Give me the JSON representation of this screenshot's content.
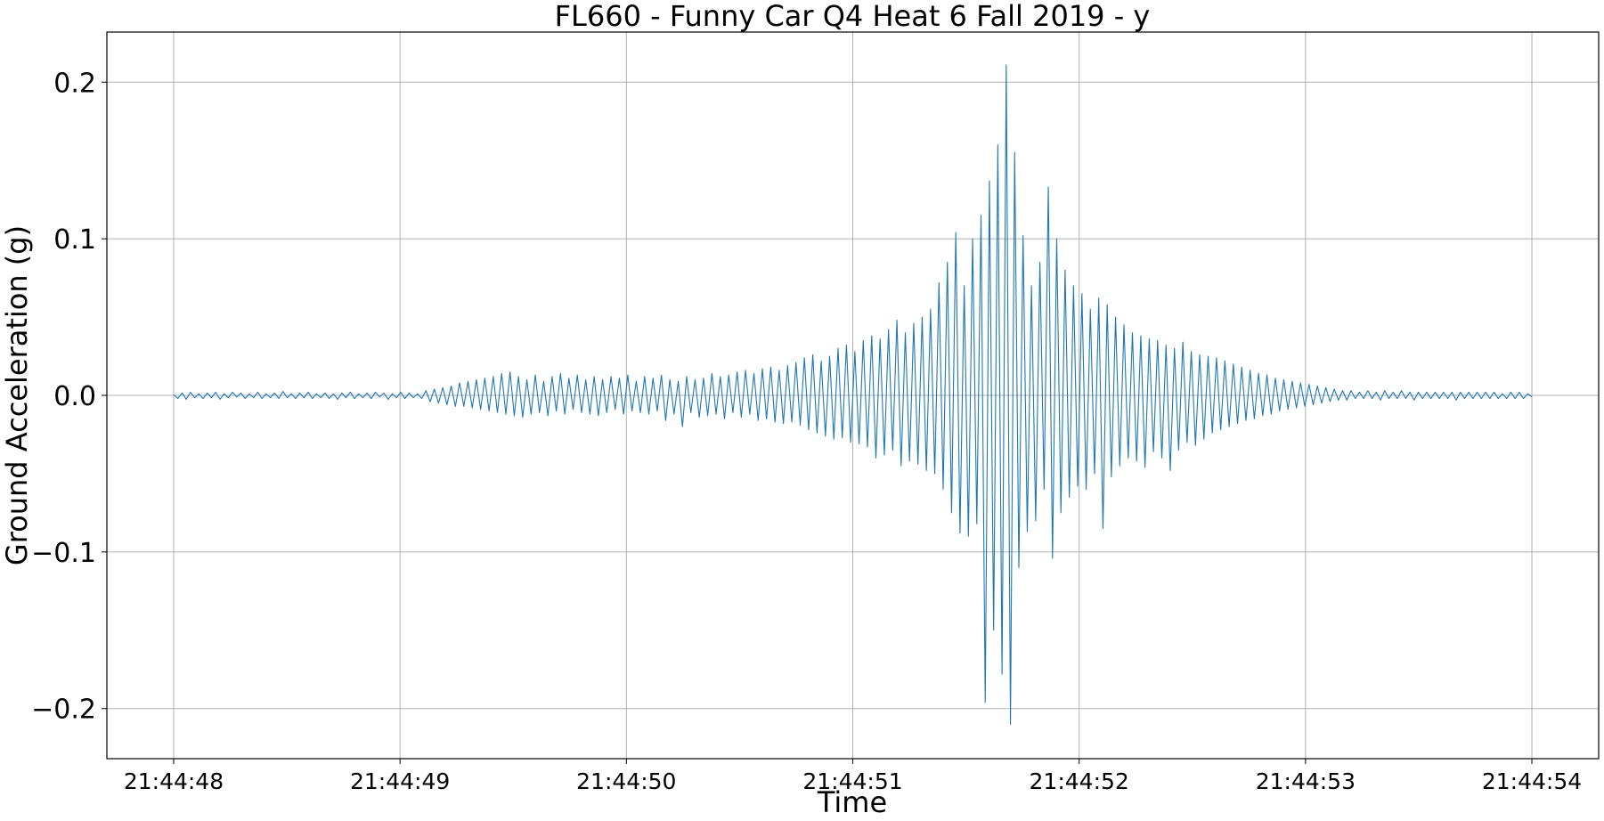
{
  "chart_data": {
    "type": "line",
    "title": "FL660 - Funny Car Q4 Heat 6 Fall 2019 - y",
    "xlabel": "Time",
    "ylabel": "Ground Acceleration (g)",
    "x_tick_labels": [
      "21:44:48",
      "21:44:49",
      "21:44:50",
      "21:44:51",
      "21:44:52",
      "21:44:53",
      "21:44:54"
    ],
    "y_tick_labels": [
      "−0.2",
      "−0.1",
      "0.0",
      "0.1",
      "0.2"
    ],
    "y_ticks": [
      -0.2,
      -0.1,
      0.0,
      0.1,
      0.2
    ],
    "x_range_seconds": [
      "21:44:48",
      "21:44:54"
    ],
    "xlim": [
      "21:44:47.705",
      "21:44:54.295"
    ],
    "ylim": [
      -0.232,
      0.232
    ],
    "grid": true,
    "legend": "none",
    "line_color": "#1f77b4",
    "series": [
      {
        "values": [
          0.0005,
          -0.002,
          0.0015,
          -0.0025,
          0.002,
          -0.0015,
          0.001,
          -0.002,
          0.0015,
          -0.0015,
          0.002,
          -0.0025,
          0.001,
          -0.0015,
          0.002,
          -0.001,
          0.0015,
          -0.002,
          0.001,
          -0.0015,
          0.002,
          -0.002,
          0.001,
          -0.0015,
          0.0015,
          -0.002,
          0.0025,
          -0.0015,
          0.001,
          -0.002,
          0.0015,
          -0.0015,
          0.002,
          -0.002,
          0.001,
          -0.0015,
          0.0015,
          -0.002,
          0.001,
          -0.0025,
          0.0015,
          -0.0015,
          0.002,
          -0.002,
          0.001,
          -0.0015,
          0.0015,
          -0.002,
          0.002,
          -0.001,
          0.0015,
          -0.0025,
          0.001,
          -0.0015,
          0.002,
          -0.002,
          0.0015,
          -0.0015,
          0.001,
          -0.002,
          0.003,
          -0.004,
          0.004,
          -0.005,
          0.005,
          -0.006,
          0.006,
          -0.007,
          0.008,
          -0.007,
          0.009,
          -0.008,
          0.01,
          -0.009,
          0.011,
          -0.01,
          0.012,
          -0.011,
          0.014,
          -0.012,
          0.015,
          -0.013,
          0.012,
          -0.014,
          0.01,
          -0.012,
          0.013,
          -0.011,
          0.009,
          -0.013,
          0.012,
          -0.01,
          0.014,
          -0.012,
          0.011,
          -0.009,
          0.013,
          -0.011,
          0.01,
          -0.012,
          0.012,
          -0.013,
          0.01,
          -0.011,
          0.012,
          -0.009,
          0.011,
          -0.012,
          0.013,
          -0.01,
          0.009,
          -0.011,
          0.012,
          -0.012,
          0.011,
          -0.01,
          0.013,
          -0.016,
          0.01,
          -0.012,
          0.009,
          -0.02,
          0.012,
          -0.011,
          0.01,
          -0.014,
          0.011,
          -0.013,
          0.014,
          -0.012,
          0.012,
          -0.015,
          0.013,
          -0.011,
          0.015,
          -0.014,
          0.016,
          -0.012,
          0.014,
          -0.016,
          0.017,
          -0.015,
          0.018,
          -0.017,
          0.016,
          -0.018,
          0.019,
          -0.017,
          0.021,
          -0.019,
          0.024,
          -0.022,
          0.026,
          -0.024,
          0.022,
          -0.026,
          0.025,
          -0.028,
          0.03,
          -0.027,
          0.032,
          -0.03,
          0.028,
          -0.031,
          0.035,
          -0.033,
          0.038,
          -0.04,
          0.036,
          -0.038,
          0.042,
          -0.035,
          0.048,
          -0.045,
          0.04,
          -0.042,
          0.046,
          -0.044,
          0.05,
          -0.048,
          0.055,
          -0.05,
          0.072,
          -0.06,
          0.085,
          -0.075,
          0.104,
          -0.088,
          0.07,
          -0.09,
          0.1,
          -0.082,
          0.115,
          -0.196,
          0.137,
          -0.15,
          0.16,
          -0.178,
          0.211,
          -0.21,
          0.155,
          -0.11,
          0.102,
          -0.087,
          0.07,
          -0.08,
          0.085,
          -0.06,
          0.133,
          -0.104,
          0.1,
          -0.075,
          0.08,
          -0.065,
          0.07,
          -0.058,
          0.065,
          -0.06,
          0.055,
          -0.05,
          0.062,
          -0.085,
          0.058,
          -0.052,
          0.05,
          -0.045,
          0.045,
          -0.04,
          0.04,
          -0.042,
          0.038,
          -0.046,
          0.036,
          -0.036,
          0.035,
          -0.04,
          0.032,
          -0.048,
          0.03,
          -0.035,
          0.034,
          -0.03,
          0.028,
          -0.032,
          0.026,
          -0.028,
          0.025,
          -0.024,
          0.024,
          -0.022,
          0.022,
          -0.02,
          0.02,
          -0.018,
          0.018,
          -0.016,
          0.016,
          -0.015,
          0.014,
          -0.013,
          0.013,
          -0.012,
          0.011,
          -0.01,
          0.01,
          -0.009,
          0.009,
          -0.008,
          0.008,
          -0.007,
          0.007,
          -0.006,
          0.006,
          -0.005,
          0.005,
          -0.004,
          0.004,
          -0.003,
          0.003,
          -0.003,
          0.003,
          -0.002,
          0.002,
          -0.002,
          0.003,
          -0.002,
          0.002,
          -0.003,
          0.003,
          -0.002,
          0.002,
          -0.002,
          0.003,
          -0.002,
          0.002,
          -0.003,
          0.002,
          -0.002,
          0.002,
          -0.002,
          0.002,
          -0.002,
          0.002,
          -0.002,
          0.002,
          -0.003,
          0.002,
          -0.002,
          0.002,
          -0.002,
          0.002,
          -0.002,
          0.002,
          -0.002,
          0.002,
          -0.002,
          0.001,
          -0.002,
          0.002,
          -0.002,
          0.002,
          -0.002,
          0.001,
          -0.001
        ]
      }
    ]
  }
}
